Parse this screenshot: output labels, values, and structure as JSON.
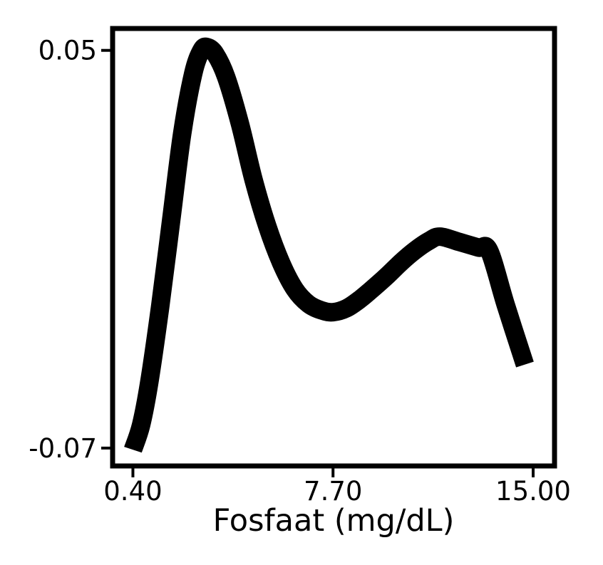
{
  "chart_data": {
    "type": "line",
    "title": "",
    "xlabel": "Fosfaat (mg/dL)",
    "ylabel": "",
    "xlim": [
      -0.34,
      15.78
    ],
    "ylim": [
      -0.0754,
      0.0566
    ],
    "x_ticks": [
      {
        "value": 0.4,
        "label": "0.40"
      },
      {
        "value": 7.7,
        "label": "7.70"
      },
      {
        "value": 15.0,
        "label": "15.00"
      }
    ],
    "y_ticks": [
      {
        "value": 0.05,
        "label": "0.05"
      },
      {
        "value": -0.07,
        "label": "-0.07"
      }
    ],
    "grid": false,
    "legend": "none",
    "line_color": "#000000",
    "series": [
      {
        "x": [
          0.4,
          0.7,
          1.0,
          1.4,
          1.8,
          2.2,
          2.6,
          2.9,
          3.1,
          3.4,
          3.8,
          4.3,
          4.8,
          5.3,
          5.8,
          6.3,
          6.8,
          7.3,
          7.7,
          8.2,
          8.7,
          9.2,
          9.7,
          10.2,
          10.7,
          11.2,
          11.6,
          12.3,
          13.0,
          13.4,
          14.0,
          14.7
        ],
        "y": [
          -0.0705,
          -0.063,
          -0.05,
          -0.027,
          -0.001,
          0.025,
          0.043,
          0.05,
          0.051,
          0.049,
          0.042,
          0.028,
          0.011,
          -0.003,
          -0.014,
          -0.022,
          -0.0265,
          -0.0285,
          -0.029,
          -0.0278,
          -0.025,
          -0.0215,
          -0.0178,
          -0.0138,
          -0.0103,
          -0.0075,
          -0.0062,
          -0.0078,
          -0.0095,
          -0.0105,
          -0.0268,
          -0.0448
        ]
      }
    ]
  }
}
